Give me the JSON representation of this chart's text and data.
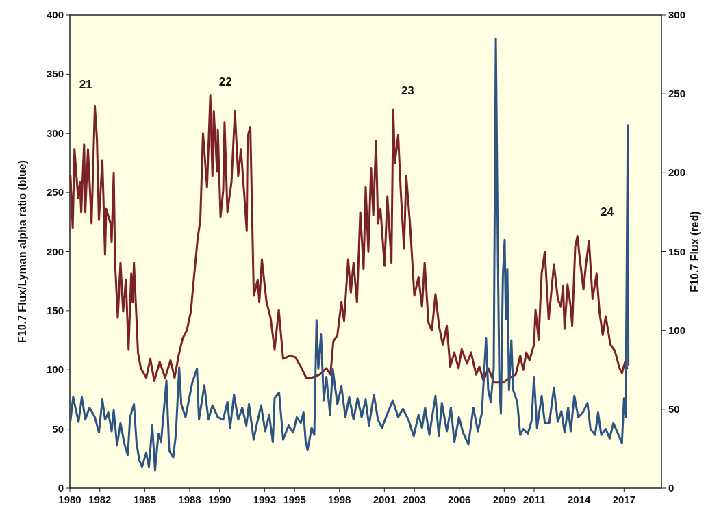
{
  "chart_data": {
    "type": "line",
    "ylabel": "F10.7 Flux/Lyman alpha ratio (blue)",
    "y2label": "F10.7 Flux (red)",
    "xlim": [
      1980,
      2019.5
    ],
    "xticks": [
      1980,
      1982,
      1985,
      1988,
      1990,
      1993,
      1995,
      1998,
      2001,
      2003,
      2006,
      2009,
      2011,
      2014,
      2017
    ],
    "ylim": [
      0,
      400
    ],
    "yticks": [
      0,
      50,
      100,
      150,
      200,
      250,
      300,
      350,
      400
    ],
    "y2lim": [
      0,
      300
    ],
    "y2ticks": [
      0,
      50,
      100,
      150,
      200,
      250,
      300
    ],
    "annotations": [
      "21",
      "22",
      "23",
      "24"
    ],
    "series": [
      {
        "color": "#7b2226",
        "axis": "y2",
        "x": [
          1980.04,
          1980.19,
          1980.31,
          1980.55,
          1980.67,
          1980.76,
          1980.95,
          1981.03,
          1981.21,
          1981.45,
          1981.67,
          1981.81,
          1981.94,
          1982.17,
          1982.35,
          1982.43,
          1982.71,
          1982.79,
          1982.93,
          1983.02,
          1983.2,
          1983.38,
          1983.56,
          1983.74,
          1983.92,
          1984.1,
          1984.19,
          1984.28,
          1984.55,
          1984.74,
          1985.1,
          1985.37,
          1985.64,
          1986.0,
          1986.36,
          1986.72,
          1986.99,
          1987.26,
          1987.53,
          1987.81,
          1988.08,
          1988.26,
          1988.53,
          1988.71,
          1988.89,
          1989.16,
          1989.38,
          1989.52,
          1989.61,
          1989.83,
          1989.88,
          1990.06,
          1990.24,
          1990.33,
          1990.52,
          1990.79,
          1991.02,
          1991.24,
          1991.42,
          1991.64,
          1991.81,
          1991.87,
          1992.05,
          1992.28,
          1992.54,
          1992.65,
          1992.82,
          1993.13,
          1993.4,
          1993.67,
          1993.95,
          1994.24,
          1994.7,
          1995.06,
          1995.42,
          1995.78,
          1996.14,
          1996.68,
          1997.13,
          1997.4,
          1997.59,
          1997.86,
          1998.13,
          1998.31,
          1998.58,
          1998.76,
          1998.94,
          1999.17,
          1999.39,
          1999.61,
          1999.75,
          1999.93,
          2000.11,
          2000.26,
          2000.44,
          2000.57,
          2000.74,
          2001.01,
          2001.2,
          2001.47,
          2001.59,
          2001.7,
          2001.92,
          2002.1,
          2002.31,
          2002.46,
          2002.73,
          2003.0,
          2003.28,
          2003.51,
          2003.69,
          2003.94,
          2004.17,
          2004.41,
          2004.66,
          2004.9,
          2005.17,
          2005.39,
          2005.67,
          2005.95,
          2006.16,
          2006.52,
          2006.79,
          2007.12,
          2007.34,
          2007.62,
          2007.93,
          2008.33,
          2008.95,
          2009.36,
          2009.77,
          2010.07,
          2010.27,
          2010.48,
          2010.69,
          2010.99,
          2011.09,
          2011.3,
          2011.5,
          2011.71,
          2011.97,
          2012.32,
          2012.58,
          2012.78,
          2012.93,
          2013.03,
          2013.23,
          2013.44,
          2013.54,
          2013.74,
          2013.89,
          2014.05,
          2014.29,
          2014.46,
          2014.66,
          2014.9,
          2015.17,
          2015.37,
          2015.58,
          2015.78,
          2016.09,
          2016.39,
          2016.7,
          2016.86,
          2017.07,
          2017.21
        ],
        "values": [
          198,
          165,
          215,
          184,
          194,
          175,
          218,
          175,
          215,
          168,
          242,
          221,
          170,
          208,
          148,
          177,
          168,
          156,
          200,
          143,
          108,
          143,
          112,
          132,
          88,
          136,
          118,
          143,
          86,
          76,
          70,
          82,
          68,
          80,
          70,
          81,
          70,
          84,
          95,
          100,
          112,
          131,
          158,
          170,
          225,
          191,
          249,
          198,
          239,
          201,
          227,
          172,
          189,
          232,
          175,
          194,
          239,
          198,
          215,
          187,
          163,
          223,
          229,
          122,
          132,
          118,
          145,
          118,
          108,
          88,
          113,
          82,
          84,
          83,
          77,
          70,
          70,
          72,
          76,
          72,
          93,
          97,
          118,
          106,
          145,
          124,
          143,
          118,
          175,
          139,
          191,
          150,
          203,
          173,
          220,
          168,
          177,
          141,
          185,
          143,
          240,
          206,
          224,
          187,
          152,
          198,
          165,
          122,
          134,
          115,
          143,
          105,
          100,
          123,
          102,
          91,
          103,
          77,
          86,
          76,
          88,
          79,
          86,
          72,
          77,
          68,
          76,
          67,
          67,
          70,
          72,
          84,
          75,
          86,
          81,
          91,
          113,
          94,
          136,
          150,
          107,
          142,
          120,
          115,
          128,
          101,
          129,
          115,
          103,
          153,
          160,
          145,
          126,
          142,
          157,
          120,
          136,
          111,
          97,
          109,
          91,
          87,
          76,
          73,
          80,
          76
        ]
      },
      {
        "color": "#2e5484",
        "x": [
          1980.04,
          1980.22,
          1980.58,
          1980.8,
          1981.03,
          1981.31,
          1981.67,
          1981.94,
          1982.17,
          1982.35,
          1982.57,
          1982.79,
          1982.93,
          1983.15,
          1983.38,
          1983.65,
          1983.87,
          1984.02,
          1984.28,
          1984.46,
          1984.65,
          1984.82,
          1985.1,
          1985.28,
          1985.5,
          1985.69,
          1985.91,
          1986.09,
          1986.45,
          1986.63,
          1986.9,
          1987.08,
          1987.3,
          1987.44,
          1987.72,
          1988.17,
          1988.49,
          1988.62,
          1988.98,
          1989.25,
          1989.52,
          1989.88,
          1990.24,
          1990.52,
          1990.7,
          1990.96,
          1991.24,
          1991.51,
          1991.78,
          1991.96,
          1992.27,
          1992.5,
          1992.77,
          1993.04,
          1993.31,
          1993.55,
          1993.67,
          1993.97,
          1994.24,
          1994.6,
          1994.91,
          1995.15,
          1995.42,
          1995.6,
          1995.74,
          1995.87,
          1996.14,
          1996.32,
          1996.47,
          1996.59,
          1996.77,
          1996.95,
          1997.13,
          1997.37,
          1997.55,
          1997.86,
          1998.13,
          1998.4,
          1998.65,
          1998.94,
          1999.21,
          1999.48,
          1999.75,
          1999.97,
          2000.3,
          2000.57,
          2000.84,
          2001.2,
          2001.56,
          2001.92,
          2002.24,
          2002.6,
          2002.96,
          2003.28,
          2003.51,
          2003.72,
          2004.0,
          2004.41,
          2004.63,
          2004.84,
          2005.17,
          2005.44,
          2005.67,
          2005.98,
          2006.25,
          2006.61,
          2006.94,
          2007.24,
          2007.51,
          2007.79,
          2007.93,
          2008.1,
          2008.3,
          2008.44,
          2008.58,
          2008.68,
          2008.78,
          2008.91,
          2009.03,
          2009.11,
          2009.21,
          2009.32,
          2009.48,
          2009.6,
          2009.87,
          2010.07,
          2010.27,
          2010.58,
          2010.83,
          2010.99,
          2011.19,
          2011.5,
          2011.71,
          2012.01,
          2012.32,
          2012.58,
          2012.82,
          2013.03,
          2013.27,
          2013.44,
          2013.68,
          2013.94,
          2014.25,
          2014.56,
          2014.76,
          2015.07,
          2015.27,
          2015.48,
          2015.78,
          2016.04,
          2016.29,
          2016.6,
          2016.86,
          2017.0,
          2017.11,
          2017.25,
          2017.29
        ],
        "values": [
          57,
          77,
          56,
          77,
          58,
          68,
          60,
          47,
          75,
          58,
          64,
          48,
          66,
          36,
          55,
          37,
          28,
          60,
          71,
          37,
          23,
          18,
          30,
          18,
          53,
          15,
          46,
          39,
          91,
          32,
          26,
          46,
          102,
          71,
          60,
          89,
          101,
          58,
          87,
          58,
          70,
          60,
          58,
          73,
          51,
          79,
          58,
          68,
          53,
          71,
          41,
          55,
          70,
          48,
          62,
          39,
          76,
          81,
          41,
          53,
          47,
          60,
          55,
          64,
          40,
          32,
          51,
          45,
          142,
          101,
          130,
          74,
          94,
          62,
          101,
          71,
          86,
          60,
          77,
          58,
          76,
          60,
          75,
          53,
          79,
          58,
          51,
          63,
          74,
          60,
          67,
          58,
          44,
          62,
          51,
          68,
          45,
          78,
          44,
          72,
          48,
          68,
          39,
          60,
          47,
          37,
          68,
          48,
          64,
          127,
          83,
          73,
          101,
          380,
          195,
          86,
          63,
          179,
          210,
          143,
          185,
          83,
          125,
          83,
          73,
          45,
          50,
          46,
          57,
          94,
          51,
          78,
          55,
          55,
          85,
          56,
          65,
          47,
          68,
          48,
          78,
          60,
          64,
          72,
          50,
          45,
          64,
          45,
          50,
          42,
          55,
          46,
          38,
          76,
          60,
          307,
          104
        ]
      }
    ]
  }
}
